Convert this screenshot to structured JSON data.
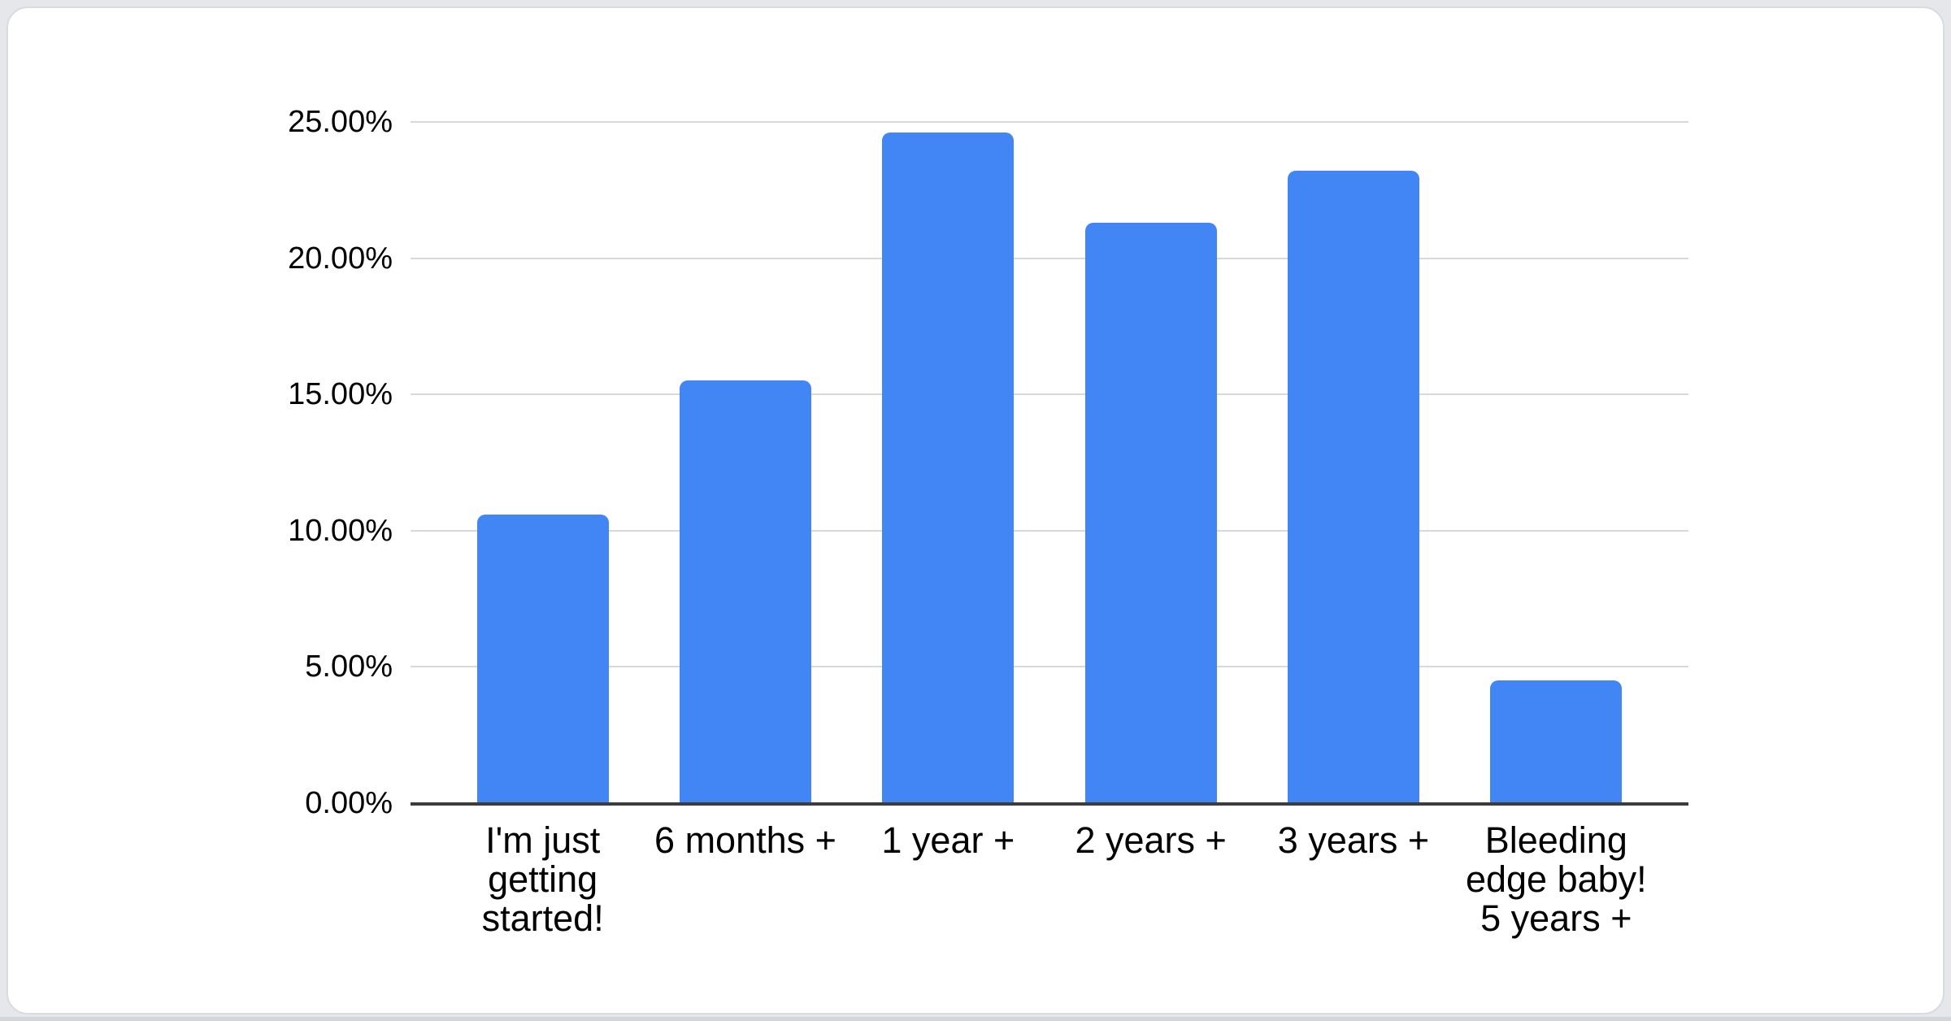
{
  "window": {
    "background_color": "#e5e7ea",
    "card_background": "#ffffff",
    "card_border_color": "#d9dbde",
    "bottom_edge_color": "#d2d5d9"
  },
  "chart_data": {
    "type": "bar",
    "title": "",
    "xlabel": "",
    "ylabel": "",
    "legend_position": "none",
    "grid": true,
    "categories": [
      "I'm just getting started!",
      "6 months +",
      "1 year +",
      "2 years +",
      "3 years +",
      "Bleeding edge baby! 5 years +"
    ],
    "category_lines": [
      [
        "I'm just",
        "getting",
        "started!"
      ],
      [
        "6 months +"
      ],
      [
        "1 year +"
      ],
      [
        "2 years +"
      ],
      [
        "3 years +"
      ],
      [
        "Bleeding",
        "edge baby!",
        "5 years +"
      ]
    ],
    "values": [
      10.6,
      15.5,
      24.6,
      21.3,
      23.2,
      4.5
    ],
    "value_unit": "%",
    "ylim": [
      0,
      25
    ],
    "yticks": [
      {
        "value": 0,
        "label": "0.00%"
      },
      {
        "value": 5,
        "label": "5.00%"
      },
      {
        "value": 10,
        "label": "10.00%"
      },
      {
        "value": 15,
        "label": "15.00%"
      },
      {
        "value": 20,
        "label": "20.00%"
      },
      {
        "value": 25,
        "label": "25.00%"
      }
    ],
    "bar_color": "#4285f4",
    "gridline_color": "#d9d9d9",
    "axis_line_color": "#3c3c3c",
    "text_color": "#000000"
  }
}
